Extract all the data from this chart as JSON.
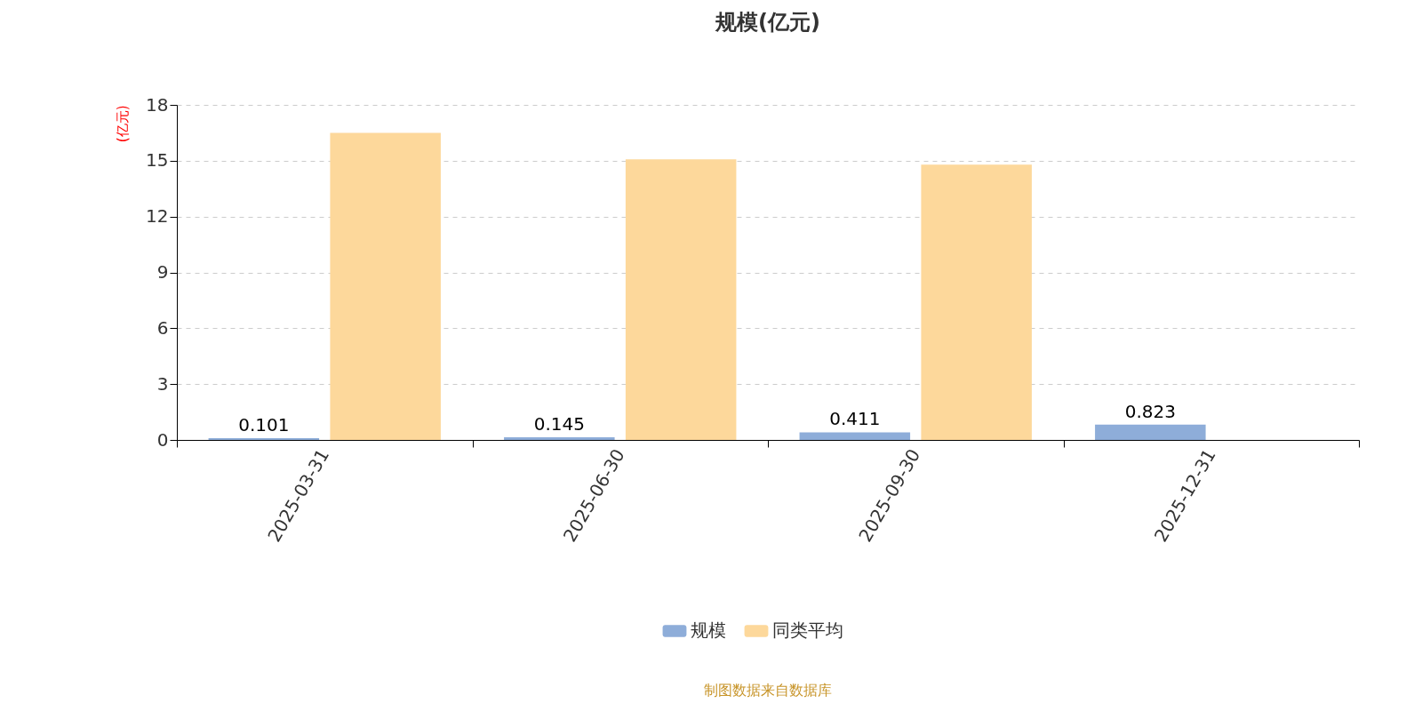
{
  "chart_data": {
    "type": "bar",
    "title": "规模(亿元)",
    "ylabel": "(亿元)",
    "categories": [
      "2025-03-31",
      "2025-06-30",
      "2025-09-30",
      "2025-12-31"
    ],
    "series": [
      {
        "name": "规模",
        "color": "#8eadd9",
        "values": [
          0.101,
          0.145,
          0.411,
          0.823
        ],
        "value_labels": [
          "0.101",
          "0.145",
          "0.411",
          "0.823"
        ]
      },
      {
        "name": "同类平均",
        "color": "#fdd89b",
        "values": [
          16.5,
          15.08,
          14.79,
          null
        ]
      }
    ],
    "ylim": [
      0,
      18
    ],
    "yticks": [
      0,
      3,
      6,
      9,
      12,
      15,
      18
    ],
    "grid": "y",
    "legend": "bottom",
    "annotations": [
      "制图数据来自数据库"
    ]
  }
}
